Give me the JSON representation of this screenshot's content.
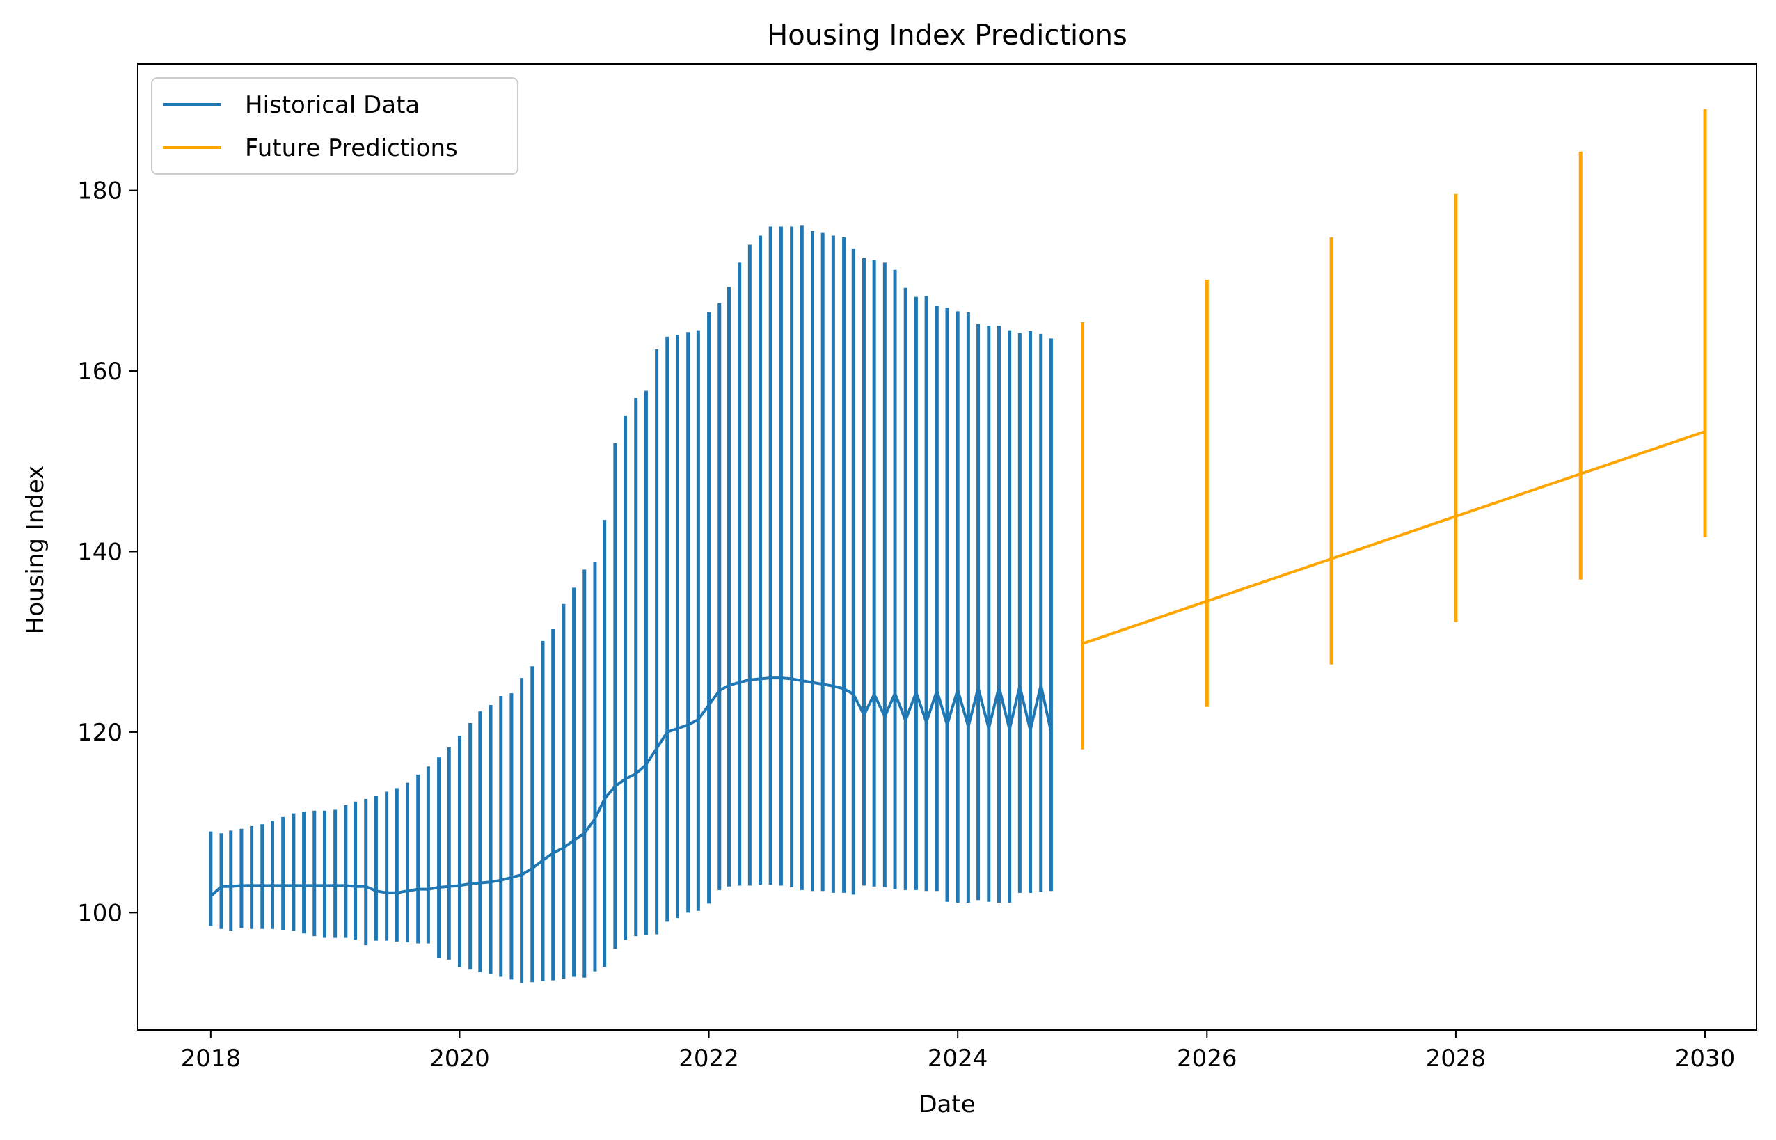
{
  "chart_data": {
    "type": "line",
    "title": "Housing Index Predictions",
    "xlabel": "Date",
    "ylabel": "Housing Index",
    "xlim": [
      "2017-06-01",
      "2030-06-01"
    ],
    "ylim": [
      87,
      194
    ],
    "x_ticks": [
      "2018",
      "2020",
      "2022",
      "2024",
      "2026",
      "2028",
      "2030"
    ],
    "x_tick_dates": [
      "2018-01-01",
      "2020-01-01",
      "2022-01-01",
      "2024-01-01",
      "2026-01-01",
      "2028-01-01",
      "2030-01-01"
    ],
    "y_ticks": [
      100,
      120,
      140,
      160,
      180
    ],
    "grid": false,
    "legend": "top-left",
    "series": [
      {
        "name": "Historical Data",
        "color": "#1f77b4",
        "x": [
          "2018-01-01",
          "2018-02-01",
          "2018-03-01",
          "2018-04-01",
          "2018-05-01",
          "2018-06-01",
          "2018-07-01",
          "2018-08-01",
          "2018-09-01",
          "2018-10-01",
          "2018-11-01",
          "2018-12-01",
          "2019-01-01",
          "2019-02-01",
          "2019-03-01",
          "2019-04-01",
          "2019-05-01",
          "2019-06-01",
          "2019-07-01",
          "2019-08-01",
          "2019-09-01",
          "2019-10-01",
          "2019-11-01",
          "2019-12-01",
          "2020-01-01",
          "2020-02-01",
          "2020-03-01",
          "2020-04-01",
          "2020-05-01",
          "2020-06-01",
          "2020-07-01",
          "2020-08-01",
          "2020-09-01",
          "2020-10-01",
          "2020-11-01",
          "2020-12-01",
          "2021-01-01",
          "2021-02-01",
          "2021-03-01",
          "2021-04-01",
          "2021-05-01",
          "2021-06-01",
          "2021-07-01",
          "2021-08-01",
          "2021-09-01",
          "2021-10-01",
          "2021-11-01",
          "2021-12-01",
          "2022-01-01",
          "2022-02-01",
          "2022-03-01",
          "2022-04-01",
          "2022-05-01",
          "2022-06-01",
          "2022-07-01",
          "2022-08-01",
          "2022-09-01",
          "2022-10-01",
          "2022-11-01",
          "2022-12-01",
          "2023-01-01",
          "2023-02-01",
          "2023-03-01",
          "2023-04-01",
          "2023-05-01",
          "2023-06-01",
          "2023-07-01",
          "2023-08-01",
          "2023-09-01",
          "2023-10-01",
          "2023-11-01",
          "2023-12-01",
          "2024-01-01",
          "2024-02-01",
          "2024-03-01",
          "2024-04-01",
          "2024-05-01",
          "2024-06-01",
          "2024-07-01",
          "2024-08-01",
          "2024-09-01",
          "2024-10-01"
        ],
        "high": [
          109.0,
          108.8,
          109.1,
          109.3,
          109.6,
          109.8,
          110.2,
          110.6,
          111.0,
          111.2,
          111.3,
          111.3,
          111.4,
          111.9,
          112.3,
          112.6,
          112.9,
          113.4,
          113.8,
          114.4,
          115.3,
          116.2,
          117.2,
          118.3,
          119.6,
          121.0,
          122.3,
          123.0,
          124.0,
          124.3,
          126.0,
          127.3,
          130.1,
          131.4,
          134.2,
          136.0,
          138.0,
          138.8,
          143.5,
          152.0,
          155.0,
          157.0,
          157.8,
          162.4,
          163.8,
          164.0,
          164.3,
          164.5,
          166.5,
          167.5,
          169.3,
          172.0,
          174.0,
          175.0,
          176.0,
          176.0,
          176.0,
          176.1,
          175.5,
          175.3,
          175.0,
          174.8,
          173.5,
          172.5,
          172.3,
          172.0,
          171.2,
          169.2,
          168.2,
          168.3,
          167.2,
          167.0,
          166.6,
          166.5,
          165.2,
          165.0,
          165.0,
          164.5,
          164.2,
          164.4,
          164.1,
          163.6
        ],
        "low": [
          98.5,
          98.2,
          98.0,
          98.3,
          98.2,
          98.2,
          98.2,
          98.1,
          98.0,
          97.7,
          97.4,
          97.2,
          97.2,
          97.2,
          97.0,
          96.4,
          96.9,
          96.9,
          96.8,
          96.7,
          96.6,
          96.6,
          95.0,
          94.8,
          94.0,
          93.7,
          93.4,
          93.2,
          92.9,
          92.6,
          92.2,
          92.3,
          92.4,
          92.5,
          92.7,
          92.9,
          92.8,
          93.5,
          94.0,
          96.0,
          97.0,
          97.4,
          97.5,
          97.6,
          99.0,
          99.4,
          100.0,
          100.2,
          101.0,
          102.5,
          102.9,
          103.0,
          103.0,
          103.1,
          103.1,
          103.0,
          102.8,
          102.5,
          102.4,
          102.4,
          102.2,
          102.2,
          102.0,
          103.0,
          102.9,
          102.8,
          102.6,
          102.5,
          102.5,
          102.4,
          102.4,
          101.2,
          101.1,
          101.1,
          101.4,
          101.2,
          101.1,
          101.1,
          102.2,
          102.2,
          102.3,
          102.4
        ],
        "values": [
          101.8,
          102.9,
          102.9,
          103.0,
          103.0,
          103.0,
          103.0,
          103.0,
          103.0,
          103.0,
          103.0,
          103.0,
          103.0,
          103.0,
          102.9,
          102.9,
          102.4,
          102.2,
          102.2,
          102.4,
          102.6,
          102.6,
          102.8,
          102.9,
          103.0,
          103.2,
          103.3,
          103.4,
          103.6,
          103.9,
          104.2,
          104.9,
          105.8,
          106.6,
          107.2,
          108.0,
          108.8,
          110.4,
          112.6,
          114.0,
          114.8,
          115.4,
          116.4,
          118.2,
          120.0,
          120.4,
          120.8,
          121.4,
          123.0,
          124.6,
          125.2,
          125.5,
          125.8,
          125.9,
          126.0,
          126.0,
          125.9,
          125.7,
          125.5,
          125.3,
          125.1,
          124.8,
          123.3,
          123.0,
          123.0,
          123.0,
          122.9,
          122.8,
          122.8,
          122.8,
          122.8,
          122.7,
          122.7,
          122.7,
          122.7,
          122.7,
          122.7,
          122.7,
          122.7,
          122.7,
          122.7,
          122.5
        ],
        "oscillation": [
          0,
          0,
          0,
          0,
          0,
          0,
          0,
          0,
          0,
          0,
          0,
          0,
          0,
          0,
          0,
          0,
          0,
          0,
          0,
          0,
          0,
          0,
          0,
          0,
          0,
          0,
          0,
          0,
          0,
          0,
          0,
          0,
          0,
          0,
          0,
          0,
          0,
          0,
          0,
          0,
          0,
          0,
          0,
          0,
          0,
          0,
          0,
          0,
          0,
          0,
          0,
          0,
          0,
          0,
          0,
          0,
          0,
          0,
          0,
          0,
          0,
          0,
          0.9,
          1.1,
          1.2,
          1.3,
          1.4,
          1.5,
          1.6,
          1.7,
          1.8,
          1.9,
          2.0,
          2.1,
          2.2,
          2.3,
          2.3,
          2.4,
          2.4,
          2.5,
          2.5,
          2.5
        ]
      },
      {
        "name": "Future Predictions",
        "color": "#ffa500",
        "x": [
          "2025-01-01",
          "2026-01-01",
          "2027-01-01",
          "2028-01-01",
          "2029-01-01",
          "2030-01-01"
        ],
        "values": [
          129.8,
          134.5,
          139.2,
          143.9,
          148.6,
          153.3
        ],
        "high": [
          165.4,
          170.1,
          174.8,
          179.6,
          184.3,
          189.0
        ],
        "low": [
          118.1,
          122.8,
          127.5,
          132.2,
          136.9,
          141.6
        ]
      }
    ]
  }
}
